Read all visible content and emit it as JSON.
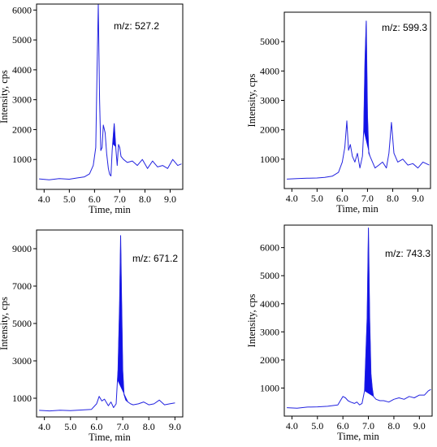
{
  "chart_data": [
    {
      "type": "line",
      "annotation": "m/z: 527.2",
      "xlabel": "Time, min",
      "ylabel": "Intensity, cps",
      "xlim": [
        3.7,
        9.5
      ],
      "ylim": [
        0,
        6200
      ],
      "xticks": [
        "4.0",
        "5.0",
        "6.0",
        "7.0",
        "8.0",
        "9.0"
      ],
      "yticks": [
        "1000",
        "2000",
        "3000",
        "4000",
        "5000",
        "6000"
      ],
      "grid": false,
      "legend": "none",
      "x": [
        3.8,
        4.2,
        4.6,
        5.0,
        5.3,
        5.6,
        5.8,
        5.95,
        6.05,
        6.1,
        6.15,
        6.2,
        6.25,
        6.3,
        6.35,
        6.42,
        6.48,
        6.55,
        6.6,
        6.65,
        6.7,
        6.78,
        6.85,
        6.9,
        6.95,
        7.0,
        7.05,
        7.15,
        7.3,
        7.5,
        7.7,
        7.9,
        8.1,
        8.3,
        8.5,
        8.7,
        8.9,
        9.1,
        9.3,
        9.45
      ],
      "y": [
        350,
        320,
        360,
        340,
        380,
        420,
        520,
        800,
        1400,
        4000,
        6200,
        3000,
        1300,
        1400,
        2150,
        1900,
        1200,
        700,
        500,
        450,
        1300,
        2200,
        1300,
        800,
        1500,
        1400,
        1100,
        1000,
        900,
        950,
        800,
        1000,
        700,
        950,
        750,
        800,
        700,
        1000,
        800,
        850
      ],
      "highlight": {
        "from": 6.72,
        "to": 6.84
      },
      "trace_color": "#2323e0",
      "fill_color": "#1010e8"
    },
    {
      "type": "line",
      "annotation": "m/z: 599.3",
      "xlabel": "Time, min",
      "ylabel": "Intensity, cps",
      "xlim": [
        3.7,
        9.5
      ],
      "ylim": [
        0,
        6000
      ],
      "xticks": [
        "4.0",
        "5.0",
        "6.0",
        "7.0",
        "8.0",
        "9.0"
      ],
      "yticks": [
        "1000",
        "2000",
        "3000",
        "4000",
        "5000"
      ],
      "grid": false,
      "legend": "none",
      "x": [
        3.8,
        4.2,
        4.6,
        5.0,
        5.3,
        5.6,
        5.85,
        6.0,
        6.1,
        6.18,
        6.25,
        6.32,
        6.4,
        6.5,
        6.6,
        6.7,
        6.8,
        6.85,
        6.9,
        6.95,
        7.0,
        7.05,
        7.1,
        7.2,
        7.3,
        7.45,
        7.6,
        7.75,
        7.85,
        7.9,
        7.95,
        8.05,
        8.2,
        8.4,
        8.6,
        8.8,
        9.0,
        9.2,
        9.45
      ],
      "y": [
        320,
        340,
        350,
        360,
        380,
        420,
        550,
        900,
        1400,
        2300,
        1300,
        1500,
        1100,
        900,
        1200,
        700,
        1100,
        2000,
        4300,
        5700,
        2500,
        1200,
        1100,
        900,
        700,
        800,
        900,
        700,
        1200,
        1700,
        2250,
        1200,
        900,
        1000,
        800,
        850,
        700,
        900,
        800
      ],
      "highlight": {
        "from": 6.85,
        "to": 7.1
      },
      "trace_color": "#2323e0",
      "fill_color": "#1010e8"
    },
    {
      "type": "line",
      "annotation": "m/z: 671.2",
      "xlabel": "Time, min",
      "ylabel": "Intensity, cps",
      "xlim": [
        3.7,
        9.3
      ],
      "ylim": [
        0,
        10000
      ],
      "xticks": [
        "4.0",
        "5.0",
        "6.0",
        "7.0",
        "8.0",
        "9.0"
      ],
      "yticks": [
        "1000",
        "3000",
        "5000",
        "7000",
        "9000"
      ],
      "grid": false,
      "legend": "none",
      "x": [
        3.8,
        4.2,
        4.6,
        5.0,
        5.4,
        5.8,
        6.0,
        6.1,
        6.2,
        6.3,
        6.45,
        6.55,
        6.65,
        6.75,
        6.82,
        6.88,
        6.92,
        6.96,
        7.0,
        7.05,
        7.12,
        7.2,
        7.3,
        7.4,
        7.6,
        7.8,
        8.0,
        8.2,
        8.4,
        8.6,
        8.8,
        9.0
      ],
      "y": [
        350,
        320,
        360,
        340,
        370,
        400,
        700,
        1100,
        850,
        950,
        600,
        800,
        500,
        700,
        2500,
        6000,
        9700,
        6000,
        2500,
        1200,
        900,
        800,
        700,
        650,
        700,
        800,
        650,
        700,
        900,
        650,
        700,
        750
      ],
      "highlight": {
        "from": 6.8,
        "to": 7.2
      },
      "trace_color": "#2323e0",
      "fill_color": "#1010e8"
    },
    {
      "type": "line",
      "annotation": "m/z: 743.3",
      "xlabel": "Time, min",
      "ylabel": "Intensity, cps",
      "xlim": [
        3.7,
        9.5
      ],
      "ylim": [
        0,
        6800
      ],
      "xticks": [
        "4.0",
        "5.0",
        "6.0",
        "7.0",
        "8.0",
        "9.0"
      ],
      "yticks": [
        "1000",
        "2000",
        "3000",
        "4000",
        "5000",
        "6000"
      ],
      "grid": false,
      "legend": "none",
      "x": [
        3.8,
        4.2,
        4.6,
        5.0,
        5.4,
        5.8,
        6.0,
        6.1,
        6.2,
        6.3,
        6.45,
        6.55,
        6.65,
        6.75,
        6.85,
        6.95,
        7.0,
        7.05,
        7.1,
        7.15,
        7.2,
        7.3,
        7.45,
        7.6,
        7.8,
        8.0,
        8.2,
        8.4,
        8.6,
        8.8,
        9.0,
        9.2,
        9.35,
        9.45
      ],
      "y": [
        300,
        280,
        320,
        330,
        350,
        400,
        700,
        650,
        550,
        500,
        450,
        500,
        400,
        450,
        900,
        3500,
        6700,
        3500,
        1500,
        1000,
        700,
        600,
        550,
        550,
        500,
        600,
        650,
        600,
        700,
        650,
        750,
        750,
        900,
        950
      ],
      "highlight": {
        "from": 6.85,
        "to": 7.2
      },
      "trace_color": "#2323e0",
      "fill_color": "#1010e8"
    }
  ]
}
